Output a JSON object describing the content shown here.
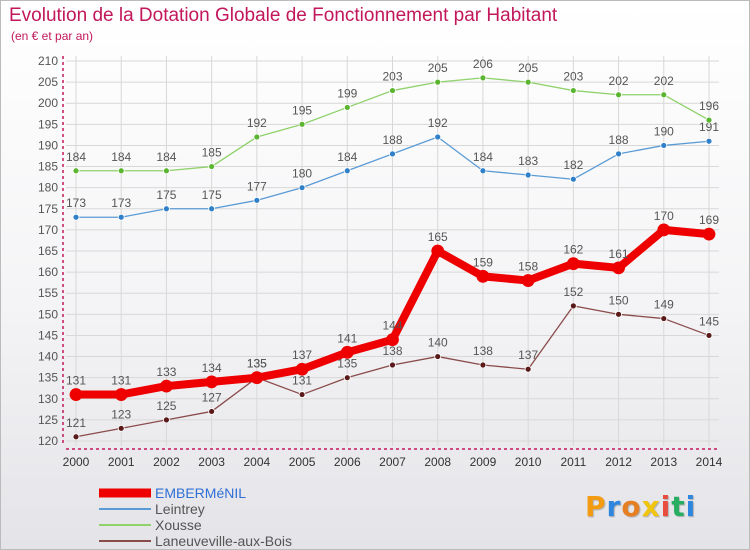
{
  "title": "Evolution de la Dotation Globale de Fonctionnement par Habitant",
  "subtitle": "(en € et par an)",
  "logo": {
    "text": "Proxiti",
    "letter_colors": [
      "#f39c12",
      "#2e86de",
      "#e67e22",
      "#f1c40f",
      "#e74c3c",
      "#27ae60",
      "#2e86de"
    ]
  },
  "colors": {
    "title": "#c2185b",
    "axis": "#c2185b",
    "grid": "#d8d8d8",
    "label": "#555555"
  },
  "chart_data": {
    "type": "line",
    "title": "Evolution de la Dotation Globale de Fonctionnement par Habitant",
    "subtitle": "(en € et par an)",
    "xlabel": "",
    "ylabel": "",
    "ylim": [
      120,
      210
    ],
    "yticks": [
      120,
      125,
      130,
      135,
      140,
      145,
      150,
      155,
      160,
      165,
      170,
      175,
      180,
      185,
      190,
      195,
      200,
      205,
      210
    ],
    "x": [
      "2000",
      "2001",
      "2002",
      "2003",
      "2004",
      "2005",
      "2006",
      "2007",
      "2008",
      "2009",
      "2010",
      "2011",
      "2012",
      "2013",
      "2014"
    ],
    "grid": true,
    "legend_position": "bottom-left",
    "series": [
      {
        "name": "EMBERMéNIL",
        "color": "#ee0000",
        "marker_color": "#ee0000",
        "emphasis": true,
        "values": [
          131,
          131,
          133,
          134,
          135,
          137,
          141,
          144,
          165,
          159,
          158,
          162,
          161,
          170,
          169
        ]
      },
      {
        "name": "Leintrey",
        "color": "#5b9bd5",
        "marker_color": "#2f7fc9",
        "emphasis": false,
        "values": [
          173,
          173,
          175,
          175,
          177,
          180,
          184,
          188,
          192,
          184,
          183,
          182,
          188,
          190,
          191
        ]
      },
      {
        "name": "Xousse",
        "color": "#8fd16a",
        "marker_color": "#5cb531",
        "emphasis": false,
        "values": [
          184,
          184,
          184,
          185,
          192,
          195,
          199,
          203,
          205,
          206,
          205,
          203,
          202,
          202,
          196
        ]
      },
      {
        "name": "Laneuveville-aux-Bois",
        "color": "#8a4b4b",
        "marker_color": "#5a1a1a",
        "emphasis": false,
        "values": [
          121,
          123,
          125,
          127,
          135,
          131,
          135,
          138,
          140,
          138,
          137,
          152,
          150,
          149,
          145
        ]
      }
    ]
  }
}
